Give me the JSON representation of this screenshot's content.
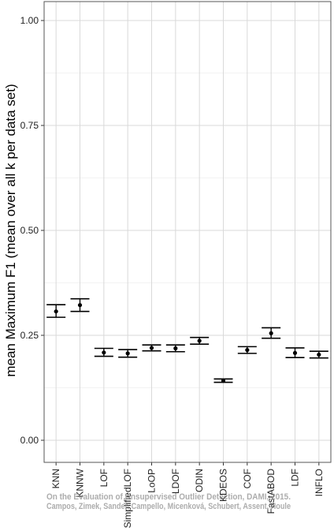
{
  "chart_data": {
    "type": "scatter",
    "title": "",
    "xlabel": "",
    "ylabel": "mean Maximum F1 (mean over all k per data set)",
    "ylim": [
      -0.02,
      1.05
    ],
    "yticks": [
      0.0,
      0.25,
      0.5,
      0.75,
      1.0
    ],
    "ytick_labels": [
      "0.00",
      "0.25",
      "0.50",
      "0.75",
      "1.00"
    ],
    "grid": true,
    "categories": [
      "KNN",
      "KNNW",
      "LOF",
      "SimplifiedLOF",
      "LoOP",
      "LDOF",
      "ODIN",
      "KDEOS",
      "COF",
      "FastABOD",
      "LDF",
      "INFLO"
    ],
    "series": [
      {
        "values": [
          0.307,
          0.322,
          0.209,
          0.207,
          0.22,
          0.219,
          0.237,
          0.142,
          0.215,
          0.255,
          0.208,
          0.204
        ],
        "lower": [
          0.293,
          0.307,
          0.2,
          0.198,
          0.213,
          0.211,
          0.229,
          0.138,
          0.207,
          0.243,
          0.197,
          0.196
        ],
        "upper": [
          0.323,
          0.337,
          0.219,
          0.216,
          0.227,
          0.227,
          0.245,
          0.146,
          0.223,
          0.268,
          0.22,
          0.212
        ]
      }
    ]
  },
  "watermark": {
    "line1": "On the Evaluation of Unsupervised Outlier Detection, DAMI, 2015.",
    "line2": "Campos, Zimek, Sander, Campello, Micenková, Schubert, Assent, Houle"
  }
}
